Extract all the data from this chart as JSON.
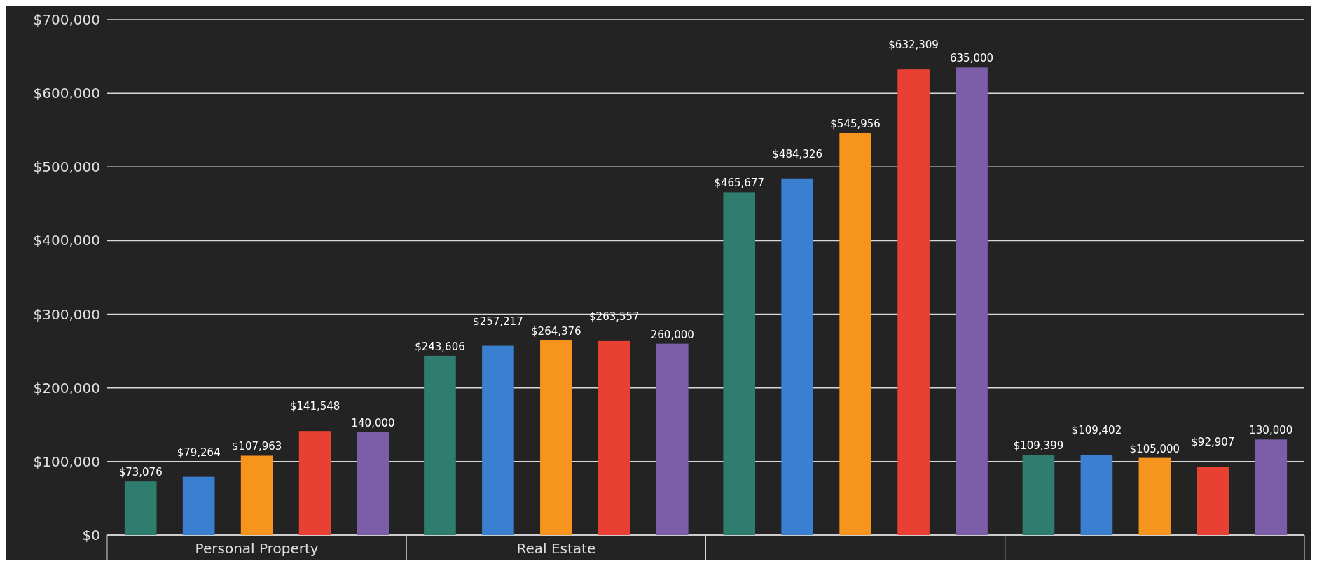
{
  "chart_data": {
    "type": "bar",
    "categories": [
      "Personal Property",
      "Real Estate",
      null,
      null
    ],
    "series": [
      {
        "color": "#2e7d6e",
        "values": [
          73076,
          243606,
          465677,
          109399
        ],
        "value_labels": [
          "$73,076",
          "$243,606",
          "$465,677",
          "$109,399"
        ]
      },
      {
        "color": "#3a7fd0",
        "values": [
          79264,
          257217,
          484326,
          109402
        ],
        "value_labels": [
          "$79,264",
          "$257,217",
          "$484,326",
          "$109,402"
        ]
      },
      {
        "color": "#f7941d",
        "values": [
          107963,
          264376,
          545956,
          105000
        ],
        "value_labels": [
          "$107,963",
          "$264,376",
          "$545,956",
          "$105,000"
        ]
      },
      {
        "color": "#e84133",
        "values": [
          141548,
          263557,
          632309,
          92907
        ],
        "value_labels": [
          "$141,548",
          "$263,557",
          "$632,309",
          "$92,907"
        ]
      },
      {
        "color": "#7b5ea7",
        "values": [
          140000,
          260000,
          635000,
          130000
        ],
        "value_labels": [
          "140,000",
          "260,000",
          "635,000",
          "130,000"
        ]
      }
    ],
    "ylim": [
      0,
      700000
    ],
    "yticks": [
      {
        "value": 0,
        "label": "$0"
      },
      {
        "value": 100000,
        "label": "$100,000"
      },
      {
        "value": 200000,
        "label": "$200,000"
      },
      {
        "value": 300000,
        "label": "$300,000"
      },
      {
        "value": 400000,
        "label": "$400,000"
      },
      {
        "value": 500000,
        "label": "$500,000"
      },
      {
        "value": 600000,
        "label": "$600,000"
      },
      {
        "value": 700000,
        "label": "$700,000"
      }
    ],
    "grid": "y"
  }
}
